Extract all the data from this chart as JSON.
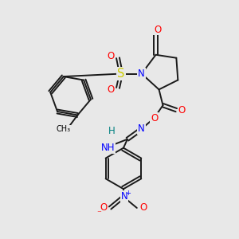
{
  "background_color": "#e8e8e8",
  "bond_color": "#1a1a1a",
  "atom_colors": {
    "O": "#ff0000",
    "N": "#0000ff",
    "S": "#cccc00",
    "C": "#1a1a1a",
    "H": "#008080"
  },
  "font_size_atom": 8.5,
  "fig_size": [
    3.0,
    3.0
  ],
  "dpi": 100
}
